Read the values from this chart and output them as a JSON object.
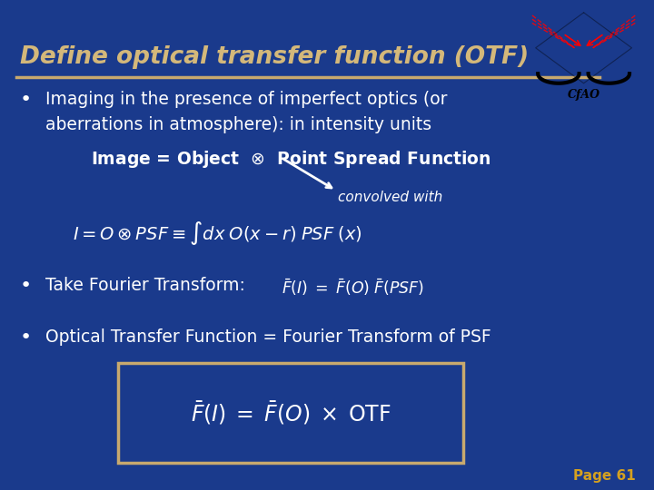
{
  "bg_color": "#1a3a8c",
  "title_text": "Define optical transfer function (OTF)",
  "title_color": "#d4b87a",
  "title_fontsize": 19,
  "separator_color": "#c8a96e",
  "bullet1_line1": "Imaging in the presence of imperfect optics (or",
  "bullet1_line2": "aberrations in atmosphere): in intensity units",
  "page_text": "Page 61",
  "page_color": "#d4a020",
  "text_color": "#ffffff",
  "box_color": "#c8a96e",
  "bullet_color": "#ffffff",
  "bullet_fontsize": 16,
  "body_fontsize": 13.5
}
